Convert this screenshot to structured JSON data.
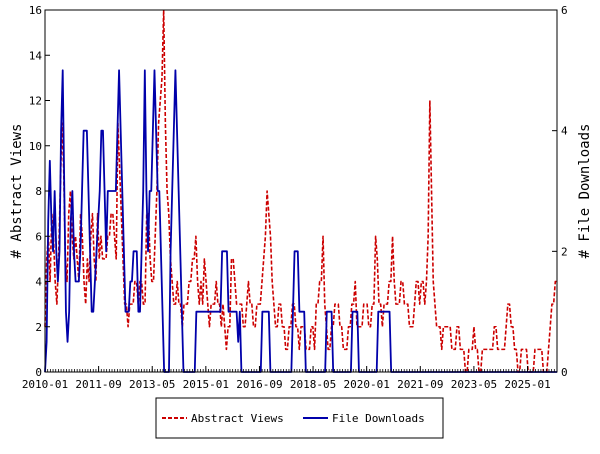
{
  "chart_data": {
    "type": "line",
    "title": "",
    "xlabel": "",
    "ylabel_left": "# Abstract Views",
    "ylabel_right": "# File Downloads",
    "x_tick_labels": [
      "2010-01",
      "2011-09",
      "2013-05",
      "2015-01",
      "2016-09",
      "2018-05",
      "2020-01",
      "2021-09",
      "2023-05",
      "2025-01"
    ],
    "x_range": [
      "2010-01",
      "2025-12"
    ],
    "y_left_ticks": [
      0,
      2,
      4,
      6,
      8,
      10,
      12,
      14,
      16
    ],
    "y_left_range": [
      0,
      16
    ],
    "y_right_ticks": [
      0,
      2,
      4,
      6
    ],
    "y_right_range": [
      0,
      6
    ],
    "grid": false,
    "legend_position": "bottom-center",
    "series": [
      {
        "name": "Abstract Views",
        "axis": "left",
        "color": "#cc0000",
        "style": "dashed",
        "values": [
          2,
          5,
          6,
          4,
          7,
          6,
          4,
          3,
          5,
          8,
          11,
          9,
          5,
          4,
          7,
          8,
          6,
          5,
          6,
          5,
          4,
          7,
          6,
          4,
          3,
          5,
          4,
          6,
          7,
          5,
          4,
          7,
          5,
          6,
          5,
          5,
          5,
          6,
          6,
          7,
          7,
          6,
          5,
          11,
          9,
          7,
          5,
          3,
          3,
          2,
          3,
          3,
          3,
          4,
          4,
          3,
          4,
          4,
          3,
          3,
          7,
          7,
          5,
          4,
          4,
          6,
          8,
          11,
          12,
          13,
          16,
          11,
          8,
          7,
          5,
          4,
          3,
          3,
          4,
          3,
          3,
          2,
          3,
          3,
          3,
          4,
          4,
          5,
          5,
          6,
          4,
          3,
          4,
          3,
          5,
          4,
          3,
          2,
          3,
          3,
          3,
          4,
          3,
          3,
          2,
          3,
          2,
          1,
          2,
          2,
          5,
          5,
          4,
          3,
          3,
          3,
          3,
          2,
          2,
          3,
          4,
          3,
          3,
          2,
          2,
          3,
          3,
          3,
          4,
          5,
          6,
          8,
          7,
          6,
          4,
          3,
          2,
          2,
          3,
          3,
          2,
          2,
          1,
          1,
          2,
          2,
          3,
          3,
          2,
          2,
          1,
          2,
          2,
          2,
          1,
          1,
          1,
          2,
          2,
          1,
          3,
          3,
          4,
          4,
          6,
          3,
          2,
          1,
          1,
          2,
          2,
          3,
          3,
          3,
          2,
          2,
          1,
          1,
          1,
          2,
          2,
          3,
          3,
          4,
          2,
          2,
          2,
          2,
          3,
          3,
          3,
          2,
          2,
          3,
          3,
          6,
          5,
          3,
          3,
          2,
          3,
          3,
          3,
          4,
          4,
          6,
          4,
          3,
          3,
          3,
          4,
          4,
          3,
          3,
          3,
          2,
          2,
          2,
          3,
          4,
          4,
          3,
          4,
          4,
          3,
          4,
          6,
          12,
          8,
          4,
          3,
          2,
          2,
          2,
          1,
          2,
          2,
          2,
          2,
          2,
          1,
          1,
          1,
          2,
          2,
          1,
          1,
          1,
          0,
          0,
          1,
          1,
          1,
          2,
          1,
          1,
          0,
          0,
          1,
          1,
          1,
          1,
          1,
          1,
          1,
          2,
          2,
          1,
          1,
          1,
          1,
          1,
          2,
          3,
          3,
          2,
          2,
          1,
          1,
          0,
          0,
          1,
          1,
          1,
          1,
          0,
          0,
          0,
          0,
          1,
          1,
          1,
          1,
          1,
          0,
          0,
          0,
          1,
          2,
          3,
          3,
          4,
          4
        ]
      },
      {
        "name": "File Downloads",
        "axis": "right",
        "color": "#0000aa",
        "style": "solid",
        "values": [
          0,
          0.5,
          2.5,
          3.5,
          2.5,
          2,
          3,
          2,
          1.5,
          2,
          4,
          5,
          3,
          1,
          0.5,
          1,
          2.5,
          3,
          2,
          1.5,
          1.5,
          1.5,
          2,
          3,
          4,
          4,
          4,
          3,
          2,
          1,
          1,
          1.5,
          2,
          2.5,
          3,
          4,
          4,
          3,
          2,
          3,
          3,
          3,
          3,
          3,
          3,
          4,
          5,
          4,
          3,
          2,
          1,
          1,
          1,
          1.5,
          1.5,
          2,
          2,
          2,
          1,
          1,
          2,
          3,
          5,
          3,
          2,
          3,
          3,
          4,
          5,
          4,
          3,
          3,
          2,
          1,
          0,
          0,
          0,
          0,
          2,
          3,
          4,
          5,
          4,
          3,
          2,
          1,
          0,
          0,
          0,
          0,
          0,
          0,
          0,
          0,
          1,
          1,
          1,
          1,
          1,
          1,
          1,
          1,
          1,
          1,
          1,
          1,
          1,
          1,
          1,
          1,
          2,
          2,
          2,
          2,
          1,
          1,
          1,
          1,
          1,
          1,
          0.5,
          1,
          0,
          0,
          0,
          0,
          0,
          0,
          0,
          0,
          0,
          0,
          0,
          0,
          0,
          1,
          1,
          1,
          1,
          1,
          0,
          0,
          0,
          0,
          0,
          0,
          0,
          0,
          0,
          0,
          0,
          0,
          0,
          0,
          1,
          2,
          2,
          2,
          1,
          1,
          1,
          1,
          0,
          0,
          0,
          0,
          0,
          0,
          0,
          0,
          0,
          0,
          0,
          0,
          0,
          1,
          1,
          1,
          1,
          0,
          0,
          0,
          0,
          0,
          0,
          0,
          0,
          0,
          0,
          0,
          0,
          1,
          1,
          1,
          1,
          0,
          0,
          0,
          0,
          0,
          0,
          0,
          0,
          0,
          0,
          0,
          0,
          1,
          1,
          1,
          1,
          1,
          1,
          1,
          1,
          0,
          0,
          0,
          0,
          0,
          0,
          0,
          0,
          0,
          0,
          0,
          0,
          0,
          0,
          0,
          0,
          0,
          0,
          0,
          0,
          0,
          0,
          0,
          0,
          0,
          0,
          0,
          0,
          0,
          0,
          0,
          0,
          0,
          0,
          0,
          0,
          0,
          0,
          0,
          0,
          0,
          0,
          0,
          0,
          0,
          0,
          0,
          0,
          0,
          0,
          0,
          0,
          0,
          0,
          0,
          0,
          0,
          0,
          0,
          0,
          0,
          0,
          0,
          0,
          0,
          0,
          0,
          0,
          0,
          0,
          0,
          0,
          0,
          0,
          0,
          0,
          0,
          0,
          0,
          0,
          0,
          0,
          0,
          0,
          0,
          0,
          0,
          0,
          0,
          0,
          0,
          0,
          0,
          0,
          0,
          0,
          0,
          0,
          0,
          0,
          0,
          0,
          0,
          0
        ]
      }
    ]
  }
}
